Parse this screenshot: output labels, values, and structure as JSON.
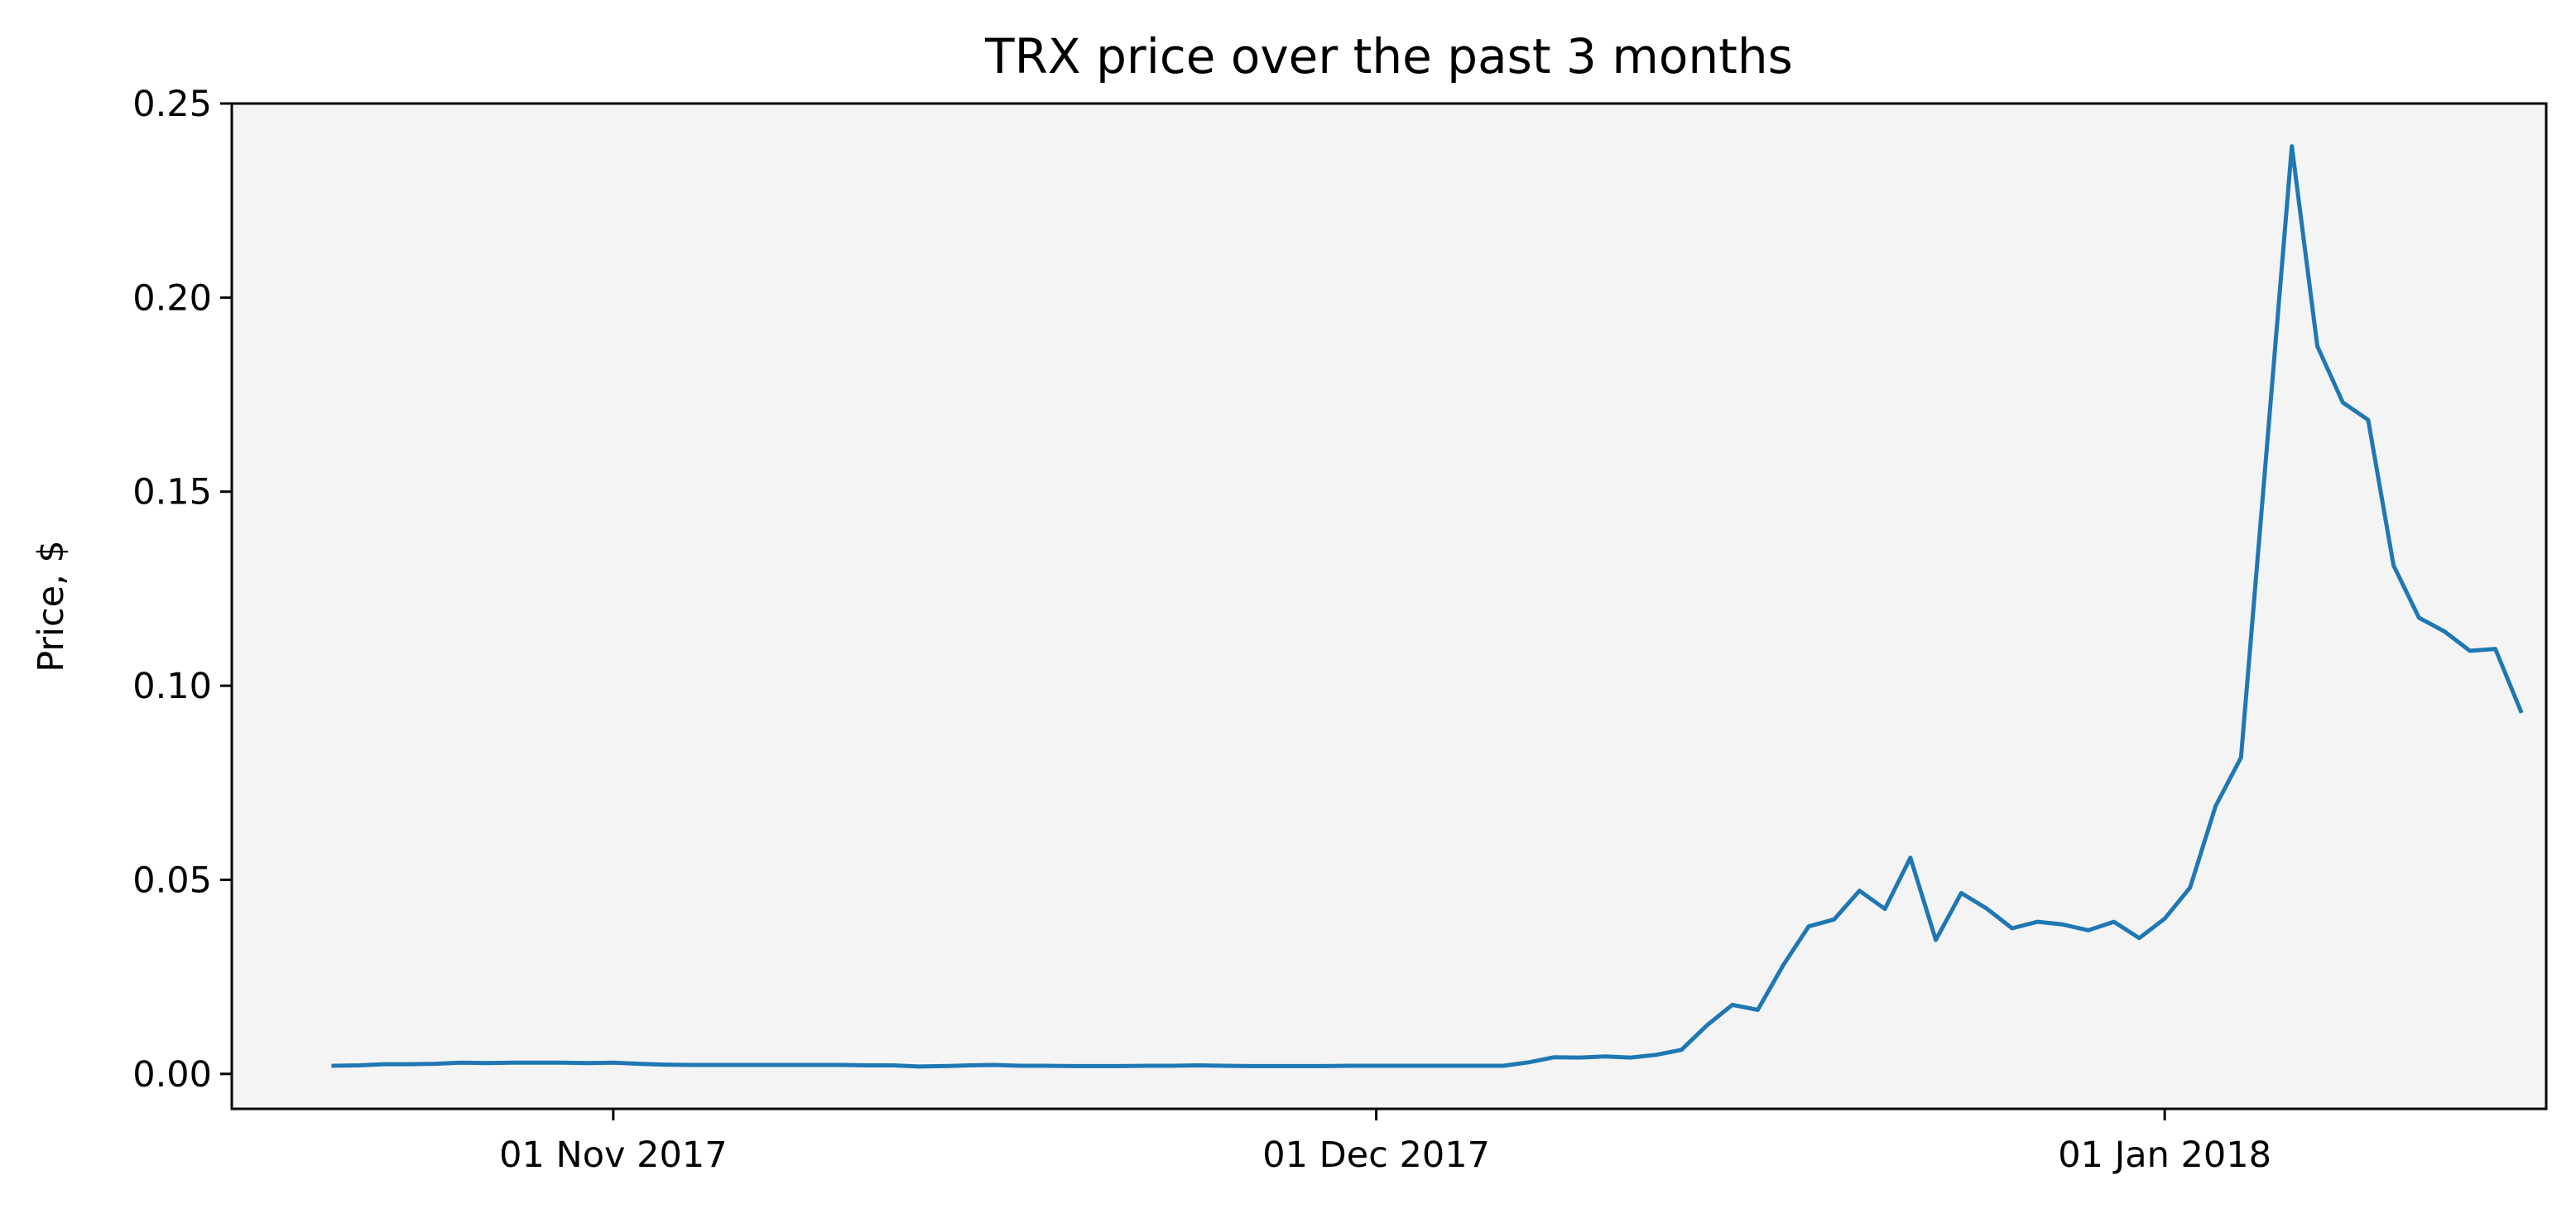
{
  "chart_data": {
    "type": "line",
    "title": "TRX price over the past 3 months",
    "xlabel": "",
    "ylabel": "Price, $",
    "x_tick_labels": [
      {
        "date": "2017-11-01",
        "label": "01 Nov 2017"
      },
      {
        "date": "2017-12-01",
        "label": "01 Dec 2017"
      },
      {
        "date": "2018-01-01",
        "label": "01 Jan 2018"
      }
    ],
    "xlim": [
      "2017-10-17",
      "2018-01-16"
    ],
    "y_ticks": [
      0.0,
      0.05,
      0.1,
      0.15,
      0.2,
      0.25
    ],
    "y_tick_labels": [
      "0.00",
      "0.05",
      "0.10",
      "0.15",
      "0.20",
      "0.25"
    ],
    "ylim": [
      -0.009,
      0.25
    ],
    "grid": false,
    "colors": {
      "line": "#1f77b4",
      "plot_bg": "#f4f4f4",
      "axes": "#000000"
    },
    "series": [
      {
        "x": [
          "2017-10-21",
          "2017-10-22",
          "2017-10-23",
          "2017-10-24",
          "2017-10-25",
          "2017-10-26",
          "2017-10-27",
          "2017-10-28",
          "2017-10-29",
          "2017-10-30",
          "2017-10-31",
          "2017-11-01",
          "2017-11-02",
          "2017-11-03",
          "2017-11-04",
          "2017-11-05",
          "2017-11-06",
          "2017-11-07",
          "2017-11-08",
          "2017-11-09",
          "2017-11-10",
          "2017-11-11",
          "2017-11-12",
          "2017-11-13",
          "2017-11-14",
          "2017-11-15",
          "2017-11-16",
          "2017-11-17",
          "2017-11-18",
          "2017-11-19",
          "2017-11-20",
          "2017-11-21",
          "2017-11-22",
          "2017-11-23",
          "2017-11-24",
          "2017-11-25",
          "2017-11-26",
          "2017-11-27",
          "2017-11-28",
          "2017-11-29",
          "2017-11-30",
          "2017-12-01",
          "2017-12-02",
          "2017-12-03",
          "2017-12-04",
          "2017-12-05",
          "2017-12-06",
          "2017-12-07",
          "2017-12-08",
          "2017-12-09",
          "2017-12-10",
          "2017-12-11",
          "2017-12-12",
          "2017-12-13",
          "2017-12-14",
          "2017-12-15",
          "2017-12-16",
          "2017-12-17",
          "2017-12-18",
          "2017-12-19",
          "2017-12-20",
          "2017-12-21",
          "2017-12-22",
          "2017-12-23",
          "2017-12-24",
          "2017-12-25",
          "2017-12-26",
          "2017-12-27",
          "2017-12-28",
          "2017-12-29",
          "2017-12-30",
          "2017-12-31",
          "2018-01-01",
          "2018-01-02",
          "2018-01-03",
          "2018-01-04",
          "2018-01-05",
          "2018-01-06",
          "2018-01-07",
          "2018-01-08",
          "2018-01-09",
          "2018-01-10",
          "2018-01-11",
          "2018-01-12",
          "2018-01-13",
          "2018-01-14",
          "2018-01-15"
        ],
        "y": [
          0.0021,
          0.0022,
          0.0025,
          0.0025,
          0.0026,
          0.0029,
          0.0028,
          0.0029,
          0.0029,
          0.0029,
          0.0028,
          0.0029,
          0.0026,
          0.0024,
          0.0023,
          0.0023,
          0.0023,
          0.0023,
          0.0023,
          0.0023,
          0.0023,
          0.0022,
          0.0022,
          0.0019,
          0.002,
          0.0022,
          0.0023,
          0.0021,
          0.0021,
          0.002,
          0.002,
          0.002,
          0.0021,
          0.0021,
          0.0022,
          0.0021,
          0.002,
          0.002,
          0.002,
          0.002,
          0.0021,
          0.0021,
          0.0021,
          0.0021,
          0.0021,
          0.0021,
          0.0021,
          0.003,
          0.0043,
          0.0042,
          0.0045,
          0.0042,
          0.0049,
          0.0062,
          0.0125,
          0.0178,
          0.0165,
          0.028,
          0.038,
          0.0398,
          0.0472,
          0.0425,
          0.0557,
          0.0345,
          0.0466,
          0.0426,
          0.0375,
          0.0392,
          0.0385,
          0.037,
          0.0392,
          0.035,
          0.04,
          0.048,
          0.069,
          0.0815,
          0.16,
          0.239,
          0.1875,
          0.173,
          0.1685,
          0.131,
          0.1175,
          0.114,
          0.109,
          0.1095,
          0.0935
        ]
      }
    ]
  }
}
